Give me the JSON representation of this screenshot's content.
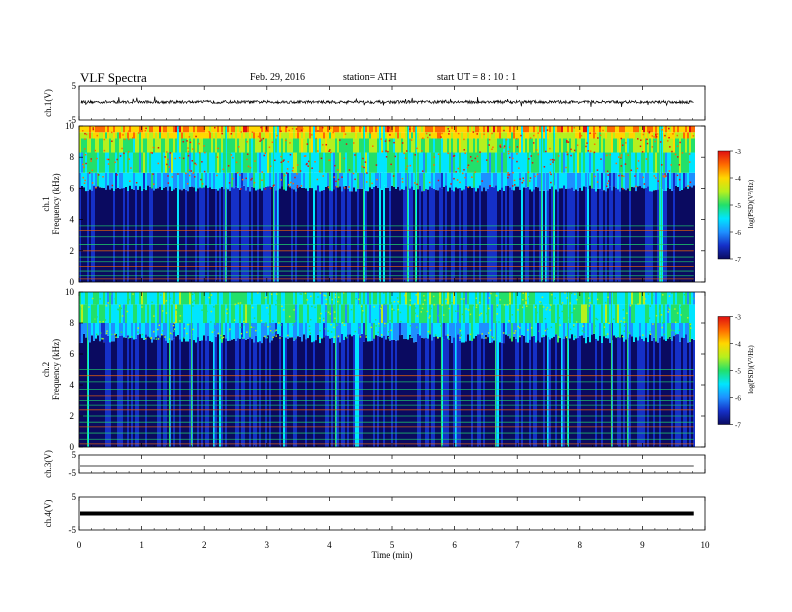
{
  "header": {
    "title": "VLF Spectra",
    "date": "Feb. 29, 2016",
    "station": "station= ATH",
    "start": "start UT = 8 : 10 : 1"
  },
  "colors": {
    "cmap": [
      "#0a0a60",
      "#1530c8",
      "#1e90ff",
      "#00e5ff",
      "#22e06b",
      "#b6f01e",
      "#ffd700",
      "#ff6a00",
      "#e01010"
    ],
    "trace": "#000000"
  },
  "chart_data": [
    {
      "type": "line",
      "panel": "ch1",
      "ylabel": "ch.1(V)",
      "yticks": [
        5,
        -5
      ],
      "ylim": [
        -5,
        5
      ],
      "description_values": {
        "baseline": 0,
        "noise_amplitude": 1.5
      }
    },
    {
      "type": "heatmap",
      "panel": "ch1-spec",
      "ylabel_line1": "ch.1",
      "ylabel_line2": "Frequency (kHz)",
      "ylim": [
        0,
        10
      ],
      "yticks": [
        0,
        2,
        4,
        6,
        8,
        10
      ],
      "colorbar": {
        "label": "log(PSD)(V²/Hz)",
        "ticks": [
          -3,
          -4,
          -5,
          -6,
          -7
        ]
      },
      "bands": [
        {
          "from_khz": 6.0,
          "to_khz": 10.0,
          "level": "high"
        },
        {
          "from_khz": 0.0,
          "to_khz": 6.0,
          "level": "low"
        }
      ]
    },
    {
      "type": "heatmap",
      "panel": "ch2-spec",
      "ylabel_line1": "ch.2",
      "ylabel_line2": "Frequency (kHz)",
      "ylim": [
        0,
        10
      ],
      "yticks": [
        0,
        2,
        4,
        6,
        8,
        10
      ],
      "colorbar": {
        "label": "log(PSD)(V²/Hz)",
        "ticks": [
          -3,
          -4,
          -5,
          -6,
          -7
        ]
      },
      "bands": [
        {
          "from_khz": 7.0,
          "to_khz": 10.0,
          "level": "mid"
        },
        {
          "from_khz": 0.0,
          "to_khz": 7.0,
          "level": "low"
        }
      ]
    },
    {
      "type": "line",
      "panel": "ch3",
      "ylabel": "ch.3(V)",
      "yticks": [
        5,
        -5
      ],
      "ylim": [
        -5,
        5
      ]
    },
    {
      "type": "line",
      "panel": "ch4",
      "ylabel": "ch.4(V)",
      "yticks": [
        5,
        -5
      ],
      "ylim": [
        -5,
        5
      ]
    }
  ],
  "xaxis": {
    "label": "Time (min)",
    "ticks": [
      0,
      1,
      2,
      3,
      4,
      5,
      6,
      7,
      8,
      9,
      10
    ],
    "xlim": [
      0,
      10
    ],
    "data_end_min": 9.82
  }
}
